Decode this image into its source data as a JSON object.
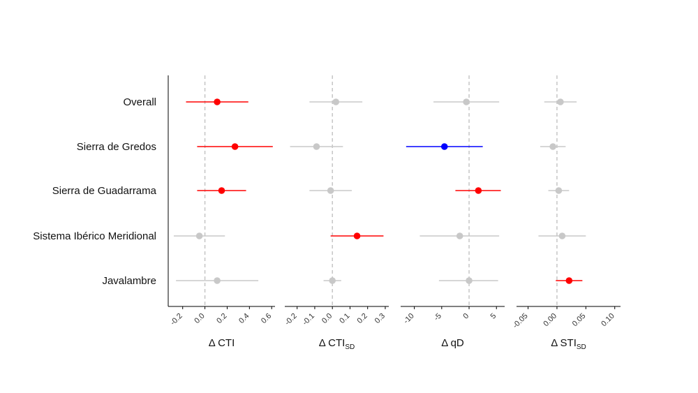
{
  "chart_data": {
    "type": "forest",
    "colors": {
      "positive": "#ff0000",
      "negative": "#0000ff",
      "ns": "#c8c8c8"
    },
    "categories": [
      "Overall",
      "Sierra de Gredos",
      "Sierra de Guadarrama",
      "Sistema Ibérico Meridional",
      "Javalambre"
    ],
    "panels": [
      {
        "xlabel_main": "Δ CTI",
        "xlabel_sub": "",
        "xlim": [
          -0.33,
          0.63
        ],
        "ticks": [
          -0.2,
          0.0,
          0.2,
          0.4,
          0.6
        ],
        "tick_labels": [
          "-0.2",
          "0.0",
          "0.2",
          "0.4",
          "0.6"
        ],
        "points": [
          {
            "estimate": 0.11,
            "lower": -0.17,
            "upper": 0.39,
            "sig": "positive"
          },
          {
            "estimate": 0.27,
            "lower": -0.07,
            "upper": 0.61,
            "sig": "positive"
          },
          {
            "estimate": 0.15,
            "lower": -0.07,
            "upper": 0.37,
            "sig": "positive"
          },
          {
            "estimate": -0.05,
            "lower": -0.28,
            "upper": 0.18,
            "sig": "ns"
          },
          {
            "estimate": 0.11,
            "lower": -0.26,
            "upper": 0.48,
            "sig": "ns"
          }
        ]
      },
      {
        "xlabel_main": "Δ CTI",
        "xlabel_sub": "SD",
        "xlim": [
          -0.27,
          0.32
        ],
        "ticks": [
          -0.2,
          -0.1,
          0.0,
          0.1,
          0.2,
          0.3
        ],
        "tick_labels": [
          "-0.2",
          "-0.1",
          "0.0",
          "0.1",
          "0.2",
          "0.3"
        ],
        "points": [
          {
            "estimate": 0.02,
            "lower": -0.13,
            "upper": 0.17,
            "sig": "ns"
          },
          {
            "estimate": -0.09,
            "lower": -0.24,
            "upper": 0.06,
            "sig": "ns"
          },
          {
            "estimate": -0.01,
            "lower": -0.13,
            "upper": 0.11,
            "sig": "ns"
          },
          {
            "estimate": 0.14,
            "lower": -0.01,
            "upper": 0.29,
            "sig": "positive"
          },
          {
            "estimate": 0.0,
            "lower": -0.05,
            "upper": 0.05,
            "sig": "ns"
          }
        ]
      },
      {
        "xlabel_main": "Δ qD",
        "xlabel_sub": "",
        "xlim": [
          -12.5,
          6.5
        ],
        "ticks": [
          -10,
          -5,
          0,
          5
        ],
        "tick_labels": [
          "-10",
          "-5",
          "0",
          "5"
        ],
        "points": [
          {
            "estimate": -0.5,
            "lower": -6.5,
            "upper": 5.5,
            "sig": "ns"
          },
          {
            "estimate": -4.5,
            "lower": -11.5,
            "upper": 2.5,
            "sig": "negative"
          },
          {
            "estimate": 1.7,
            "lower": -2.5,
            "upper": 5.8,
            "sig": "positive"
          },
          {
            "estimate": -1.7,
            "lower": -9.0,
            "upper": 5.5,
            "sig": "ns"
          },
          {
            "estimate": 0.0,
            "lower": -5.5,
            "upper": 5.3,
            "sig": "ns"
          }
        ]
      },
      {
        "xlabel_main": "Δ STI",
        "xlabel_sub": "SD",
        "xlim": [
          -0.07,
          0.11
        ],
        "ticks": [
          -0.05,
          0.0,
          0.05,
          0.1
        ],
        "tick_labels": [
          "-0.05",
          "0.00",
          "0.05",
          "0.10"
        ],
        "points": [
          {
            "estimate": 0.006,
            "lower": -0.022,
            "upper": 0.034,
            "sig": "ns"
          },
          {
            "estimate": -0.007,
            "lower": -0.029,
            "upper": 0.015,
            "sig": "ns"
          },
          {
            "estimate": 0.003,
            "lower": -0.015,
            "upper": 0.021,
            "sig": "ns"
          },
          {
            "estimate": 0.009,
            "lower": -0.032,
            "upper": 0.05,
            "sig": "ns"
          },
          {
            "estimate": 0.021,
            "lower": -0.002,
            "upper": 0.044,
            "sig": "positive"
          }
        ]
      }
    ]
  }
}
